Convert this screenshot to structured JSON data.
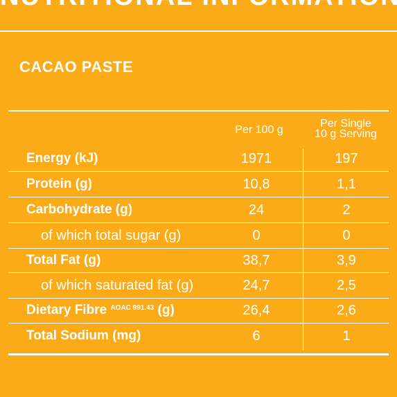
{
  "header": {
    "title": "NUTRITIONAL INFORMATION"
  },
  "product": {
    "name": "CACAO PASTE"
  },
  "table": {
    "columns": {
      "per_100g": "Per 100 g",
      "per_serving_line1": "Per Single",
      "per_serving_line2": "10 g Serving"
    },
    "rows": [
      {
        "label": "Energy (kJ)",
        "note": "",
        "unit_suffix": "",
        "per_100g": "1971",
        "per_serving": "197"
      },
      {
        "label": "Protein (g)",
        "note": "",
        "unit_suffix": "",
        "per_100g": "10,8",
        "per_serving": "1,1"
      },
      {
        "label": "Carbohydrate (g)",
        "note": "",
        "unit_suffix": "",
        "per_100g": "24",
        "per_serving": "2"
      },
      {
        "label": "of which total sugar (g)",
        "note": "",
        "unit_suffix": "",
        "per_100g": "0",
        "per_serving": "0"
      },
      {
        "label": "Total Fat (g)",
        "note": "",
        "unit_suffix": "",
        "per_100g": "38,7",
        "per_serving": "3,9"
      },
      {
        "label": "of which saturated fat (g)",
        "note": "",
        "unit_suffix": "",
        "per_100g": "24,7",
        "per_serving": "2,5"
      },
      {
        "label": "Dietary Fibre",
        "note": "AOAC 991.43",
        "unit_suffix": "(g)",
        "per_100g": "26,4",
        "per_serving": "2,6"
      },
      {
        "label": "Total Sodium (mg)",
        "note": "",
        "unit_suffix": "",
        "per_100g": "6",
        "per_serving": "1"
      }
    ]
  },
  "colors": {
    "background": "#fbab18",
    "foreground": "#ffffff"
  }
}
